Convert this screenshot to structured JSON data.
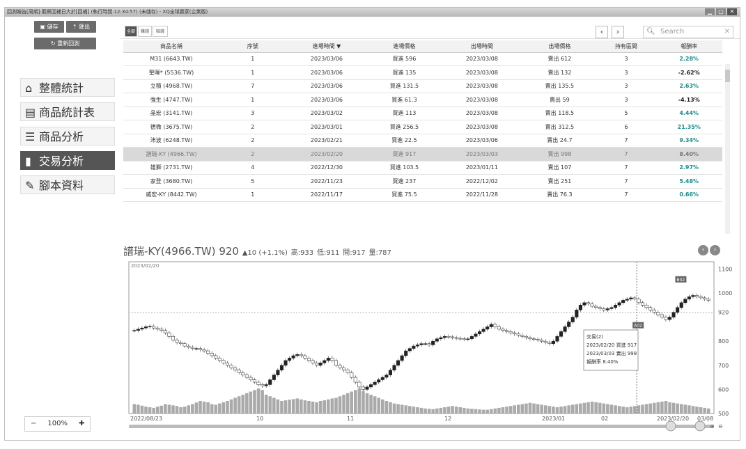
{
  "window": {
    "title": "回測報告[周期]:觀察回補日大於[回補] (執行時間:12:34:57) (未儲存) - XQ全球贏家(企業版)"
  },
  "sidebar": {
    "save_label": "儲存",
    "export_label": "匯出",
    "reset_label": "重新回測",
    "nav": [
      {
        "label": "整體統計",
        "icon": "home-icon"
      },
      {
        "label": "商品統計表",
        "icon": "list-box-icon"
      },
      {
        "label": "商品分析",
        "icon": "bullet-list-icon"
      },
      {
        "label": "交易分析",
        "icon": "bar-chart-icon"
      },
      {
        "label": "腳本資料",
        "icon": "pencil-icon"
      }
    ],
    "active_nav": 3,
    "zoom": {
      "minus": "−",
      "value": "100%",
      "plus": "✚"
    }
  },
  "toolbar": {
    "tabs": [
      "全部",
      "賺錢",
      "賠錢"
    ],
    "prev": "‹",
    "next": "›",
    "search_placeholder": "Search",
    "search_icon": "search-icon",
    "clear_icon": "close-icon"
  },
  "table": {
    "headers": [
      "商品名稱",
      "序號",
      "進場時間 ▼",
      "進場價格",
      "出場時間",
      "出場價格",
      "持有區間",
      "報酬率"
    ],
    "rows": [
      [
        "M31 (6643.TW)",
        "1",
        "2023/03/06",
        "買進 596",
        "2023/03/08",
        "賣出 612",
        "3",
        "2.28%"
      ],
      [
        "聖暉* (5536.TW)",
        "1",
        "2023/03/06",
        "買進 135",
        "2023/03/08",
        "賣出 132",
        "3",
        "-2.62%"
      ],
      [
        "立積 (4968.TW)",
        "7",
        "2023/03/06",
        "買進 131.5",
        "2023/03/08",
        "賣出 135.5",
        "3",
        "2.63%"
      ],
      [
        "強生 (4747.TW)",
        "1",
        "2023/03/06",
        "買進 61.3",
        "2023/03/08",
        "賣出 59",
        "3",
        "-4.13%"
      ],
      [
        "晶宏 (3141.TW)",
        "3",
        "2023/03/02",
        "買進 113",
        "2023/03/08",
        "賣出 118.5",
        "5",
        "4.44%"
      ],
      [
        "德微 (3675.TW)",
        "2",
        "2023/03/01",
        "買進 256.5",
        "2023/03/08",
        "賣出 312.5",
        "6",
        "21.35%"
      ],
      [
        "沛波 (6248.TW)",
        "2",
        "2023/02/21",
        "買進 22.5",
        "2023/03/06",
        "賣出 24.7",
        "7",
        "9.34%"
      ],
      [
        "譜瑞-KY (4966.TW)",
        "2",
        "2023/02/20",
        "買進 917",
        "2023/03/03",
        "賣出 998",
        "7",
        "8.40%"
      ],
      [
        "雄獅 (2731.TW)",
        "4",
        "2022/12/30",
        "買進 103.5",
        "2023/01/11",
        "賣出 107",
        "7",
        "2.97%"
      ],
      [
        "家登 (3680.TW)",
        "5",
        "2022/11/23",
        "買進 237",
        "2022/12/02",
        "賣出 251",
        "7",
        "5.48%"
      ],
      [
        "威宏-KY (8442.TW)",
        "1",
        "2022/11/17",
        "買進 75.5",
        "2022/11/28",
        "賣出 76.3",
        "7",
        "0.66%"
      ]
    ],
    "highlight_row": 7,
    "pos_color": "#1a8a8a",
    "neg_color": "#222222"
  },
  "quote": {
    "name": "譜瑞-KY(4966.TW)",
    "price": "920",
    "change": "▲10 (+1.1%)",
    "high": "高:933",
    "low": "低:911",
    "open": "開:917",
    "volume": "量:787",
    "date_label": "2023/02/20"
  },
  "chart_data": {
    "type": "candlestick",
    "y_ticks": [
      "1100",
      "1000",
      "920",
      "800",
      "700",
      "600",
      "500"
    ],
    "x_ticks": [
      "2022/08/23",
      "10",
      "11",
      "12",
      "2023/01",
      "02",
      "2023/02/20",
      "03/08"
    ],
    "ylim": [
      500,
      1130
    ],
    "closes": [
      845,
      850,
      855,
      860,
      862,
      855,
      850,
      845,
      835,
      820,
      805,
      795,
      790,
      780,
      775,
      770,
      770,
      765,
      760,
      750,
      740,
      730,
      720,
      710,
      700,
      690,
      680,
      670,
      660,
      650,
      640,
      630,
      620,
      615,
      620,
      640,
      660,
      680,
      700,
      720,
      730,
      740,
      745,
      740,
      730,
      720,
      710,
      700,
      710,
      720,
      730,
      720,
      700,
      690,
      680,
      670,
      650,
      630,
      610,
      600,
      610,
      620,
      630,
      640,
      650,
      660,
      680,
      700,
      720,
      740,
      760,
      770,
      780,
      785,
      790,
      790,
      785,
      800,
      810,
      815,
      820,
      818,
      815,
      812,
      810,
      808,
      810,
      820,
      830,
      840,
      850,
      860,
      870,
      860,
      850,
      845,
      840,
      835,
      830,
      825,
      820,
      815,
      810,
      808,
      805,
      800,
      795,
      790,
      800,
      820,
      840,
      860,
      880,
      900,
      930,
      950,
      960,
      955,
      945,
      940,
      935,
      930,
      935,
      940,
      950,
      960,
      970,
      975,
      980,
      975,
      960,
      950,
      940,
      930,
      920,
      910,
      900,
      890,
      900,
      920,
      940,
      960,
      975,
      985,
      990,
      985,
      980,
      975,
      970
    ],
    "volumes": [
      30,
      28,
      25,
      22,
      20,
      18,
      22,
      25,
      30,
      28,
      26,
      24,
      20,
      22,
      26,
      30,
      35,
      40,
      38,
      36,
      30,
      28,
      32,
      36,
      40,
      45,
      50,
      55,
      60,
      65,
      70,
      75,
      80,
      75,
      60,
      55,
      50,
      45,
      40,
      42,
      44,
      46,
      48,
      45,
      42,
      40,
      38,
      36,
      40,
      42,
      45,
      48,
      50,
      55,
      60,
      65,
      70,
      75,
      80,
      72,
      65,
      60,
      55,
      50,
      45,
      40,
      36,
      32,
      30,
      28,
      26,
      24,
      22,
      20,
      18,
      16,
      15,
      14,
      16,
      18,
      20,
      22,
      24,
      22,
      20,
      18,
      16,
      15,
      14,
      13,
      12,
      12,
      14,
      16,
      18,
      20,
      22,
      24,
      26,
      28,
      30,
      32,
      34,
      32,
      30,
      28,
      26,
      24,
      22,
      20,
      22,
      24,
      26,
      28,
      30,
      32,
      34,
      36,
      38,
      36,
      34,
      32,
      30,
      28,
      26,
      24,
      22,
      20,
      22,
      24,
      26,
      28,
      30,
      32,
      34,
      36,
      38,
      40,
      36,
      34,
      32,
      30,
      28,
      26,
      24,
      22,
      20,
      18,
      16
    ],
    "trade_entry_label": "A02",
    "trade_exit_label": "B02",
    "tooltip": {
      "title": "交易(2)",
      "line1": "2023/02/20 買進 917",
      "line2": "2023/03/03 賣出 998",
      "line3": "報酬率 8.40%"
    },
    "price_line": 920,
    "up_color": "#222222",
    "down_color": "#222222",
    "volume_color": "#aaaaaa"
  }
}
